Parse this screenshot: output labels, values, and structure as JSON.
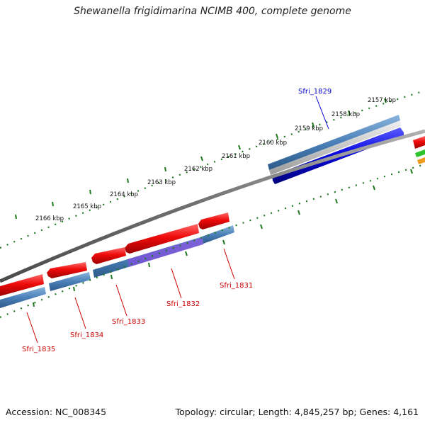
{
  "title": "Shewanella frigidimarina NCIMB 400, complete genome",
  "footer": {
    "accession": "Accession: NC_008345",
    "topology": "Topology: circular; Length: 4,845,257 bp; Genes: 4,161"
  },
  "scale_labels": [
    "2157 kbp",
    "2158 kbp",
    "2159 kbp",
    "2160 kbp",
    "2161 kbp",
    "2162 kbp",
    "2163 kbp",
    "2164 kbp",
    "2165 kbp",
    "2166 kbp"
  ],
  "genes": [
    {
      "name": "Sfri_1829",
      "strand": "forward",
      "color": "#0000cc"
    },
    {
      "name": "Sfri_1831",
      "strand": "reverse",
      "color": "#cc0000"
    },
    {
      "name": "Sfri_1832",
      "strand": "reverse",
      "color": "#cc0000"
    },
    {
      "name": "Sfri_1833",
      "strand": "reverse",
      "color": "#cc0000"
    },
    {
      "name": "Sfri_1834",
      "strand": "reverse",
      "color": "#cc0000"
    },
    {
      "name": "Sfri_1835",
      "strand": "reverse",
      "color": "#cc0000"
    }
  ],
  "colors": {
    "forward_gene": "#0a0ae0",
    "reverse_gene": "#ee0a0a",
    "cds_track": "#4a80b8",
    "highlight": "#7a55d8",
    "backbone": "#7a7a7a",
    "scale_ticks": "#1f7a1f"
  }
}
